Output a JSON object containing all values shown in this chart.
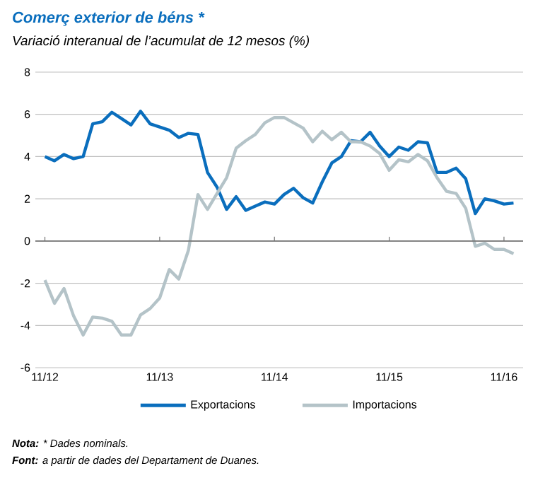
{
  "chart_data": {
    "type": "line",
    "title": "Comerç exterior de béns *",
    "subtitle": "Variació interanual de l’acumulat de 12 mesos (%)",
    "x": [
      "2012-11",
      "2012-12",
      "2013-01",
      "2013-02",
      "2013-03",
      "2013-04",
      "2013-05",
      "2013-06",
      "2013-07",
      "2013-08",
      "2013-09",
      "2013-10",
      "2013-11",
      "2013-12",
      "2014-01",
      "2014-02",
      "2014-03",
      "2014-04",
      "2014-05",
      "2014-06",
      "2014-07",
      "2014-08",
      "2014-09",
      "2014-10",
      "2014-11",
      "2014-12",
      "2015-01",
      "2015-02",
      "2015-03",
      "2015-04",
      "2015-05",
      "2015-06",
      "2015-07",
      "2015-08",
      "2015-09",
      "2015-10",
      "2015-11",
      "2015-12",
      "2016-01",
      "2016-02",
      "2016-03",
      "2016-04",
      "2016-05",
      "2016-06",
      "2016-07",
      "2016-08",
      "2016-09",
      "2016-10",
      "2016-11",
      "2016-12"
    ],
    "series": [
      {
        "name": "Exportacions",
        "color": "#0a6ebd",
        "values": [
          4.0,
          3.8,
          4.1,
          3.9,
          4.0,
          5.55,
          5.65,
          6.1,
          5.8,
          5.5,
          6.15,
          5.55,
          5.4,
          5.25,
          4.9,
          5.1,
          5.05,
          3.25,
          2.55,
          1.5,
          2.1,
          1.45,
          1.65,
          1.85,
          1.75,
          2.2,
          2.5,
          2.05,
          1.8,
          2.8,
          3.7,
          4.0,
          4.75,
          4.7,
          5.15,
          4.5,
          4.0,
          4.45,
          4.3,
          4.7,
          4.65,
          3.25,
          3.25,
          3.45,
          2.95,
          1.3,
          2.0,
          1.9,
          1.75,
          1.8
        ]
      },
      {
        "name": "Importacions",
        "color": "#b4c3c8",
        "values": [
          -1.85,
          -2.95,
          -2.25,
          -3.55,
          -4.45,
          -3.6,
          -3.65,
          -3.8,
          -4.45,
          -4.45,
          -3.5,
          -3.2,
          -2.7,
          -1.35,
          -1.8,
          -0.45,
          2.2,
          1.5,
          2.25,
          3.0,
          4.4,
          4.75,
          5.05,
          5.6,
          5.85,
          5.85,
          5.6,
          5.35,
          4.7,
          5.2,
          4.8,
          5.15,
          4.7,
          4.7,
          4.5,
          4.15,
          3.35,
          3.85,
          3.75,
          4.1,
          3.8,
          3.0,
          2.35,
          2.25,
          1.55,
          -0.25,
          -0.1,
          -0.4,
          -0.4,
          -0.6
        ]
      }
    ],
    "xlim": [
      "2012-10",
      "2017-01"
    ],
    "xticks": [
      {
        "value": "2012-11",
        "label": "11/12"
      },
      {
        "value": "2013-11",
        "label": "11/13"
      },
      {
        "value": "2014-11",
        "label": "11/14"
      },
      {
        "value": "2015-11",
        "label": "11/15"
      },
      {
        "value": "2016-11",
        "label": "11/16"
      }
    ],
    "ylim": [
      -6,
      8
    ],
    "yticks": [
      -6,
      -4,
      -2,
      0,
      2,
      4,
      6,
      8
    ],
    "grid": "y",
    "legend": "bottom",
    "marker": "none",
    "line_style": "solid",
    "annotations": [
      "**Nota:** * Dades nominals.",
      "**Font:** a partir de dades del Departament de Duanes."
    ]
  }
}
